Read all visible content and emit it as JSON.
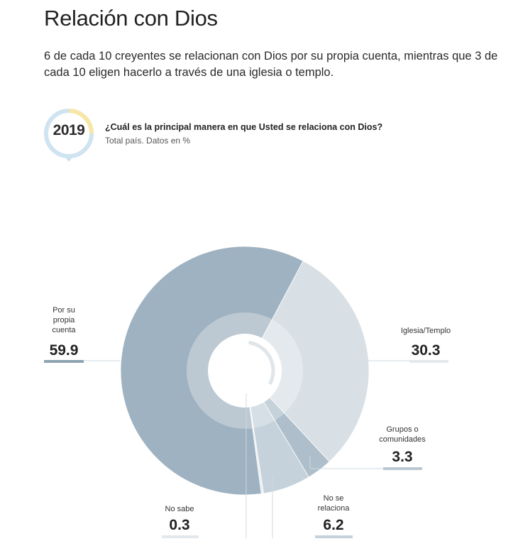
{
  "header": {
    "title": "Relación con Dios",
    "subtitle": "6 de cada 10 creyentes se relacionan con Dios por su propia cuenta, mientras que 3 de cada 10 eligen hacerlo a través de una iglesia o templo."
  },
  "badge": {
    "year": "2019"
  },
  "question": {
    "text": "¿Cuál es la principal manera en que Usted se relaciona con Dios?",
    "note": "Total país. Datos en %"
  },
  "colors": {
    "propia": "#9fb2c1",
    "iglesia": "#d8e0e6",
    "grupos": "#aebfcb",
    "no_relaciona": "#c5d2db",
    "no_sabe": "#e9eef2",
    "badge_blue": "#cfe3f1",
    "badge_yellow": "#f7e7a6"
  },
  "chart_data": {
    "type": "pie",
    "title": "¿Cuál es la principal manera en que Usted se relaciona con Dios?",
    "categories": [
      "Por su propia cuenta",
      "Iglesia/Templo",
      "Grupos o comunidades",
      "No se relaciona",
      "No sabe"
    ],
    "values": [
      59.9,
      30.3,
      3.3,
      6.2,
      0.3
    ],
    "labels": [
      {
        "lines": [
          "Por su",
          "propia",
          "cuenta"
        ],
        "value": "59.9"
      },
      {
        "lines": [
          "Iglesia/Templo"
        ],
        "value": "30.3"
      },
      {
        "lines": [
          "Grupos o",
          "comunidades"
        ],
        "value": "3.3"
      },
      {
        "lines": [
          "No se",
          "relaciona"
        ],
        "value": "6.2"
      },
      {
        "lines": [
          "No sabe"
        ],
        "value": "0.3"
      }
    ]
  }
}
